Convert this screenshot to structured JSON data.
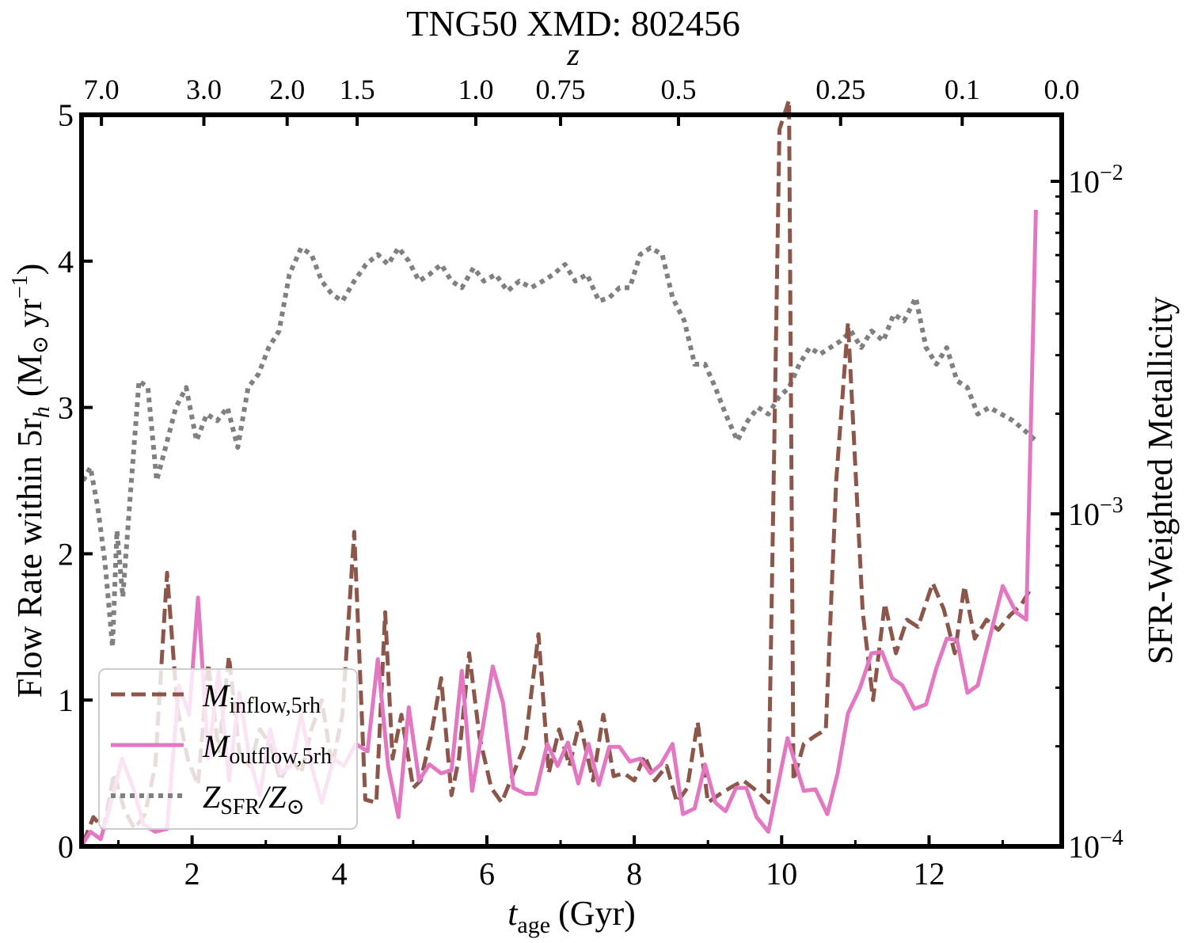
{
  "chart_data": {
    "type": "line",
    "title": "TNG50 XMD: 802456",
    "xlabel_main": "t",
    "xlabel_sub": "age",
    "xlabel_unit": "(Gyr)",
    "ylabel_left": "Flow Rate within 5r",
    "ylabel_left_sub": "h",
    "ylabel_left_unit": "(M",
    "ylabel_left_unit_tail": "yr",
    "ylabel_left_exp": "−1",
    "ylabel_right": "SFR-Weighted Metallicity",
    "top_axis_label": "z",
    "xlim": [
      0.5,
      13.8
    ],
    "ylim_left": [
      0,
      5
    ],
    "ylim_right_log10": [
      -4,
      -1.8
    ],
    "x_ticks": [
      2,
      4,
      6,
      8,
      10,
      12
    ],
    "y_ticks_left": [
      0,
      1,
      2,
      3,
      4,
      5
    ],
    "y_ticks_right": [
      {
        "base": "10",
        "exp": "−4",
        "log": -4
      },
      {
        "base": "10",
        "exp": "−3",
        "log": -3
      },
      {
        "base": "10",
        "exp": "−2",
        "log": -2
      }
    ],
    "top_ticks": [
      {
        "label": "7.0",
        "t": 0.77
      },
      {
        "label": "3.0",
        "t": 2.16
      },
      {
        "label": "2.0",
        "t": 3.29
      },
      {
        "label": "1.5",
        "t": 4.24
      },
      {
        "label": "1.0",
        "t": 5.85
      },
      {
        "label": "0.75",
        "t": 7.0
      },
      {
        "label": "0.5",
        "t": 8.6
      },
      {
        "label": "0.25",
        "t": 10.8
      },
      {
        "label": "0.1",
        "t": 12.45
      },
      {
        "label": "0.0",
        "t": 13.8
      }
    ],
    "legend": {
      "placement": "lower-left",
      "entries": [
        {
          "name": "M",
          "sub": "inflow,5rh"
        },
        {
          "name": "M",
          "sub": "outflow,5rh"
        },
        {
          "name": "Z",
          "sub": "SFR",
          "tail": "/Z",
          "tail_sym": "⊙"
        }
      ]
    },
    "series": [
      {
        "name": "inflow",
        "color": "#8c564b",
        "style": "dashed",
        "x": [
          0.52,
          0.66,
          0.8,
          0.94,
          1.08,
          1.22,
          1.36,
          1.5,
          1.66,
          1.8,
          1.94,
          2.08,
          2.22,
          2.36,
          2.5,
          2.64,
          2.78,
          2.92,
          3.06,
          3.2,
          3.34,
          3.48,
          3.62,
          3.76,
          3.9,
          4.04,
          4.2,
          4.35,
          4.5,
          4.62,
          4.72,
          4.84,
          5.0,
          5.1,
          5.24,
          5.38,
          5.52,
          5.62,
          5.76,
          5.9,
          6.06,
          6.2,
          6.36,
          6.52,
          6.7,
          6.84,
          6.98,
          7.12,
          7.26,
          7.44,
          7.58,
          7.72,
          7.86,
          8.0,
          8.14,
          8.28,
          8.44,
          8.58,
          8.72,
          8.86,
          9.0,
          9.14,
          9.3,
          9.48,
          9.66,
          9.82,
          9.97,
          10.1,
          10.16,
          10.3,
          10.44,
          10.6,
          10.74,
          10.9,
          11.1,
          11.24,
          11.4,
          11.55,
          11.7,
          11.85,
          12.05,
          12.2,
          12.35,
          12.48,
          12.62,
          12.78,
          12.94,
          13.1,
          13.25,
          13.4
        ],
        "y": [
          0.02,
          0.2,
          0.12,
          0.5,
          0.25,
          0.12,
          0.22,
          0.55,
          1.87,
          0.95,
          0.6,
          0.42,
          1.25,
          0.65,
          1.3,
          0.65,
          0.55,
          0.8,
          0.7,
          0.45,
          0.6,
          0.5,
          0.8,
          1.0,
          0.55,
          0.9,
          2.15,
          0.32,
          0.3,
          1.6,
          0.6,
          0.9,
          0.4,
          0.45,
          0.75,
          1.15,
          0.35,
          0.6,
          1.32,
          0.75,
          0.4,
          0.3,
          0.5,
          0.7,
          1.45,
          0.5,
          0.8,
          0.55,
          0.85,
          0.45,
          0.9,
          0.48,
          0.5,
          0.45,
          0.62,
          0.45,
          0.55,
          0.3,
          0.4,
          0.85,
          0.3,
          0.35,
          0.4,
          0.45,
          0.38,
          0.3,
          4.9,
          5.1,
          0.45,
          0.7,
          0.75,
          0.8,
          2.5,
          3.58,
          1.6,
          1.0,
          1.66,
          1.32,
          1.55,
          1.5,
          1.8,
          1.62,
          1.32,
          1.78,
          1.42,
          1.55,
          1.48,
          1.58,
          1.65,
          1.78
        ]
      },
      {
        "name": "outflow",
        "color": "#e377c2",
        "style": "solid",
        "x": [
          0.52,
          0.62,
          0.76,
          0.9,
          1.05,
          1.2,
          1.34,
          1.5,
          1.66,
          1.82,
          1.96,
          2.08,
          2.22,
          2.36,
          2.5,
          2.64,
          2.78,
          2.92,
          3.06,
          3.2,
          3.34,
          3.48,
          3.62,
          3.76,
          3.92,
          4.06,
          4.22,
          4.38,
          4.52,
          4.66,
          4.8,
          4.94,
          5.08,
          5.22,
          5.38,
          5.52,
          5.66,
          5.8,
          5.94,
          6.08,
          6.22,
          6.36,
          6.52,
          6.66,
          6.82,
          6.96,
          7.1,
          7.24,
          7.38,
          7.52,
          7.66,
          7.8,
          7.94,
          8.08,
          8.22,
          8.36,
          8.52,
          8.66,
          8.82,
          8.96,
          9.1,
          9.24,
          9.38,
          9.52,
          9.66,
          9.82,
          10.08,
          10.3,
          10.46,
          10.62,
          10.76,
          10.9,
          11.06,
          11.22,
          11.36,
          11.5,
          11.64,
          11.8,
          11.96,
          12.1,
          12.24,
          12.38,
          12.52,
          12.66,
          12.8,
          13.0,
          13.18,
          13.32,
          13.45
        ],
        "y": [
          0.02,
          0.1,
          0.05,
          0.3,
          0.6,
          0.4,
          0.15,
          0.1,
          0.12,
          1.1,
          0.9,
          1.7,
          0.6,
          1.2,
          0.45,
          1.05,
          0.6,
          0.35,
          0.8,
          0.5,
          0.55,
          0.9,
          0.55,
          0.3,
          0.6,
          0.55,
          0.7,
          0.65,
          1.28,
          0.55,
          0.2,
          0.95,
          0.45,
          0.56,
          0.5,
          0.52,
          1.2,
          0.38,
          0.8,
          1.23,
          0.98,
          0.4,
          0.36,
          0.36,
          0.7,
          0.55,
          0.71,
          0.43,
          0.7,
          0.42,
          0.68,
          0.68,
          0.58,
          0.6,
          0.5,
          0.56,
          0.7,
          0.22,
          0.26,
          0.56,
          0.3,
          0.24,
          0.4,
          0.4,
          0.2,
          0.1,
          0.74,
          0.38,
          0.39,
          0.22,
          0.5,
          0.91,
          1.08,
          1.32,
          1.33,
          1.15,
          1.1,
          0.94,
          0.97,
          1.22,
          1.42,
          1.41,
          1.05,
          1.1,
          1.38,
          1.78,
          1.6,
          1.55,
          4.35
        ]
      },
      {
        "name": "metallicity",
        "color": "#808080",
        "style": "dotted",
        "x": [
          0.52,
          0.62,
          0.72,
          0.82,
          0.92,
          0.98,
          1.06,
          1.16,
          1.28,
          1.4,
          1.52,
          1.64,
          1.78,
          1.92,
          2.06,
          2.2,
          2.34,
          2.48,
          2.62,
          2.76,
          2.9,
          3.04,
          3.18,
          3.32,
          3.48,
          3.62,
          3.76,
          3.9,
          4.04,
          4.2,
          4.36,
          4.52,
          4.66,
          4.8,
          4.94,
          5.08,
          5.22,
          5.38,
          5.52,
          5.66,
          5.82,
          5.96,
          6.12,
          6.28,
          6.44,
          6.6,
          6.76,
          6.9,
          7.06,
          7.2,
          7.36,
          7.52,
          7.66,
          7.8,
          7.94,
          8.08,
          8.22,
          8.38,
          8.52,
          8.68,
          8.82,
          8.96,
          9.1,
          9.24,
          9.4,
          9.54,
          9.68,
          9.82,
          9.96,
          10.1,
          10.24,
          10.38,
          10.52,
          10.66,
          10.8,
          10.94,
          11.08,
          11.22,
          11.38,
          11.52,
          11.66,
          11.82,
          11.96,
          12.1,
          12.24,
          12.38,
          12.52,
          12.66,
          12.82,
          12.98,
          13.14,
          13.3,
          13.45
        ],
        "y": [
          -2.9,
          -2.86,
          -2.98,
          -3.15,
          -3.4,
          -3.05,
          -3.25,
          -2.95,
          -2.6,
          -2.62,
          -2.9,
          -2.8,
          -2.68,
          -2.62,
          -2.78,
          -2.7,
          -2.72,
          -2.68,
          -2.8,
          -2.62,
          -2.58,
          -2.5,
          -2.45,
          -2.28,
          -2.2,
          -2.22,
          -2.3,
          -2.34,
          -2.36,
          -2.3,
          -2.25,
          -2.22,
          -2.25,
          -2.2,
          -2.24,
          -2.3,
          -2.28,
          -2.25,
          -2.3,
          -2.32,
          -2.26,
          -2.3,
          -2.28,
          -2.33,
          -2.3,
          -2.32,
          -2.3,
          -2.28,
          -2.25,
          -2.3,
          -2.28,
          -2.36,
          -2.35,
          -2.32,
          -2.32,
          -2.22,
          -2.2,
          -2.22,
          -2.35,
          -2.42,
          -2.55,
          -2.55,
          -2.62,
          -2.7,
          -2.78,
          -2.72,
          -2.68,
          -2.7,
          -2.65,
          -2.62,
          -2.55,
          -2.5,
          -2.52,
          -2.5,
          -2.48,
          -2.45,
          -2.5,
          -2.45,
          -2.48,
          -2.4,
          -2.42,
          -2.35,
          -2.5,
          -2.55,
          -2.5,
          -2.6,
          -2.62,
          -2.7,
          -2.68,
          -2.7,
          -2.72,
          -2.75,
          -2.78
        ]
      }
    ]
  }
}
